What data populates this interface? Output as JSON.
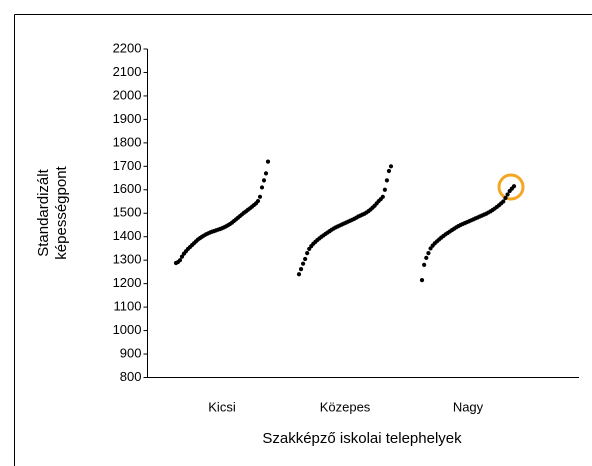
{
  "chart_data": {
    "type": "strip",
    "y_label": [
      "Standardizált",
      "képességpont"
    ],
    "x_label": "Szakképző iskolai telephelyek",
    "categories": [
      "Kicsi",
      "Közepes",
      "Nagy"
    ],
    "values": [
      [
        1288,
        1292,
        1300,
        1315,
        1328,
        1338,
        1348,
        1356,
        1364,
        1372,
        1380,
        1388,
        1394,
        1400,
        1405,
        1410,
        1414,
        1418,
        1421,
        1424,
        1427,
        1430,
        1433,
        1436,
        1440,
        1444,
        1449,
        1454,
        1460,
        1467,
        1474,
        1481,
        1488,
        1495,
        1502,
        1508,
        1515,
        1521,
        1528,
        1535,
        1542,
        1552,
        1570,
        1610,
        1640,
        1670,
        1720
      ],
      [
        1240,
        1262,
        1285,
        1305,
        1330,
        1348,
        1360,
        1370,
        1378,
        1386,
        1393,
        1400,
        1406,
        1412,
        1418,
        1424,
        1430,
        1435,
        1440,
        1444,
        1448,
        1452,
        1456,
        1460,
        1464,
        1468,
        1472,
        1476,
        1481,
        1486,
        1490,
        1494,
        1498,
        1503,
        1509,
        1516,
        1524,
        1532,
        1542,
        1552,
        1560,
        1570,
        1600,
        1640,
        1680,
        1700
      ],
      [
        1215,
        1280,
        1310,
        1330,
        1350,
        1362,
        1372,
        1380,
        1388,
        1396,
        1403,
        1410,
        1416,
        1422,
        1428,
        1434,
        1440,
        1445,
        1450,
        1454,
        1458,
        1462,
        1466,
        1470,
        1474,
        1478,
        1482,
        1486,
        1490,
        1494,
        1498,
        1503,
        1508,
        1514,
        1520,
        1527,
        1534,
        1542,
        1550,
        1565,
        1580,
        1595,
        1605,
        1615
      ]
    ],
    "color": "#000000",
    "ylim": [
      800,
      2200
    ],
    "yticks": [
      800,
      900,
      1000,
      1100,
      1200,
      1300,
      1400,
      1500,
      1600,
      1700,
      1800,
      1900,
      2000,
      2100,
      2200
    ]
  }
}
